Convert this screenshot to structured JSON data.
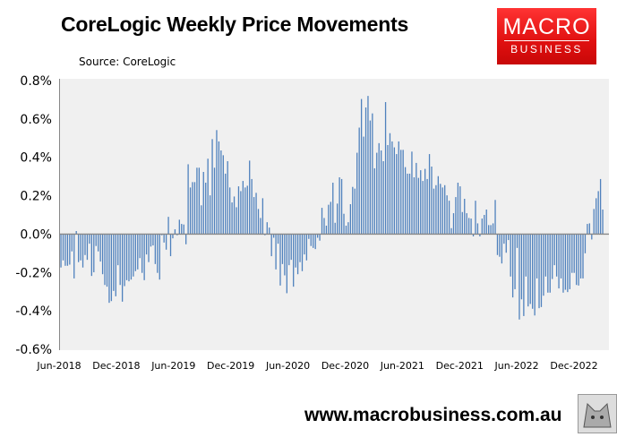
{
  "chart_data": {
    "type": "bar",
    "title": "CoreLogic Weekly Price Movements",
    "subtitle": "Source: CoreLogic",
    "xlabel": "",
    "ylabel": "",
    "ylim": [
      -0.6,
      0.8
    ],
    "yticks": [
      "0.8%",
      "0.6%",
      "0.4%",
      "0.2%",
      "0.0%",
      "-0.2%",
      "-0.4%",
      "-0.6%"
    ],
    "ytick_values": [
      0.8,
      0.6,
      0.4,
      0.2,
      0.0,
      -0.2,
      -0.4,
      -0.6
    ],
    "xticks": [
      "Jun-2018",
      "Dec-2018",
      "Jun-2019",
      "Dec-2019",
      "Jun-2020",
      "Dec-2020",
      "Jun-2021",
      "Dec-2021",
      "Jun-2022",
      "Dec-2022"
    ],
    "grid": false,
    "bar_color": "#4f81bd",
    "values": [
      -0.174,
      -0.137,
      -0.165,
      -0.165,
      -0.159,
      -0.09,
      -0.231,
      0.016,
      -0.146,
      -0.137,
      -0.174,
      -0.109,
      -0.134,
      -0.05,
      -0.218,
      -0.199,
      -0.062,
      -0.09,
      -0.143,
      -0.209,
      -0.265,
      -0.274,
      -0.358,
      -0.349,
      -0.296,
      -0.324,
      -0.162,
      -0.265,
      -0.352,
      -0.271,
      -0.24,
      -0.246,
      -0.237,
      -0.221,
      -0.193,
      -0.184,
      -0.125,
      -0.202,
      -0.24,
      -0.106,
      -0.146,
      -0.065,
      -0.059,
      -0.156,
      -0.202,
      -0.237,
      -0.006,
      -0.044,
      -0.081,
      0.09,
      -0.115,
      -0.022,
      0.025,
      -0.006,
      0.075,
      0.053,
      0.05,
      -0.053,
      0.364,
      0.243,
      0.271,
      0.271,
      0.346,
      0.346,
      0.15,
      0.324,
      0.268,
      0.393,
      0.202,
      0.495,
      0.346,
      0.542,
      0.483,
      0.436,
      0.411,
      0.315,
      0.38,
      0.243,
      0.165,
      0.196,
      0.14,
      0.249,
      0.224,
      0.277,
      0.243,
      0.252,
      0.383,
      0.287,
      0.193,
      0.215,
      0.131,
      0.084,
      0.187,
      -0.006,
      0.062,
      0.034,
      -0.115,
      -0.019,
      -0.184,
      -0.05,
      -0.268,
      -0.156,
      -0.215,
      -0.308,
      -0.162,
      -0.134,
      -0.274,
      -0.174,
      -0.209,
      -0.146,
      -0.193,
      -0.106,
      -0.137,
      -0.025,
      -0.062,
      -0.072,
      -0.078,
      -0.019,
      -0.034,
      0.137,
      0.084,
      0.044,
      0.153,
      0.168,
      0.268,
      0.059,
      0.159,
      0.296,
      0.287,
      0.106,
      0.044,
      0.062,
      0.156,
      0.246,
      0.237,
      0.424,
      0.555,
      0.704,
      0.508,
      0.66,
      0.72,
      0.592,
      0.629,
      0.343,
      0.424,
      0.474,
      0.436,
      0.38,
      0.688,
      0.464,
      0.526,
      0.483,
      0.452,
      0.417,
      0.483,
      0.439,
      0.439,
      0.349,
      0.315,
      0.315,
      0.43,
      0.296,
      0.371,
      0.293,
      0.333,
      0.277,
      0.34,
      0.287,
      0.417,
      0.352,
      0.237,
      0.255,
      0.302,
      0.262,
      0.243,
      0.255,
      0.202,
      0.174,
      0.031,
      0.109,
      0.193,
      0.268,
      0.249,
      0.115,
      0.184,
      0.109,
      0.084,
      0.081,
      -0.012,
      0.174,
      0.056,
      -0.012,
      0.081,
      0.1,
      0.128,
      0.047,
      0.047,
      0.056,
      0.178,
      -0.109,
      -0.118,
      -0.153,
      -0.05,
      -0.097,
      -0.031,
      -0.221,
      -0.33,
      -0.287,
      -0.072,
      -0.445,
      -0.34,
      -0.427,
      -0.221,
      -0.377,
      -0.364,
      -0.389,
      -0.424,
      -0.231,
      -0.386,
      -0.38,
      -0.321,
      -0.221,
      -0.305,
      -0.305,
      -0.234,
      -0.162,
      -0.221,
      -0.283,
      -0.231,
      -0.305,
      -0.29,
      -0.302,
      -0.287,
      -0.202,
      -0.202,
      -0.265,
      -0.268,
      -0.231,
      -0.231,
      -0.1,
      0.053,
      0.056,
      -0.028,
      0.131,
      0.187,
      0.224,
      0.287,
      0.128
    ]
  },
  "logo": {
    "line1": "MACRO",
    "line2": "BUSINESS"
  },
  "footer": {
    "url": "www.macrobusiness.com.au"
  },
  "icons": {
    "wolf": "wolf-logo-icon"
  }
}
